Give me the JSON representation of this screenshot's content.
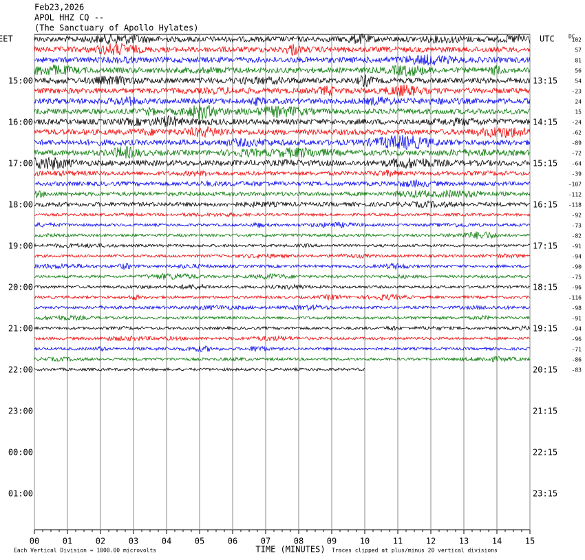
{
  "header": {
    "date": "Feb23,2026",
    "station": "APOL HHZ CQ --",
    "site": "(The Sanctuary of Apollo Hylates)"
  },
  "left_axis": {
    "title": "EET",
    "labels": [
      "15:00",
      "16:00",
      "17:00",
      "18:00",
      "19:00",
      "20:00",
      "21:00",
      "22:00",
      "23:00",
      "00:00",
      "01:00"
    ]
  },
  "right_axis": {
    "title": "UTC",
    "labels": [
      "13:15",
      "14:15",
      "15:15",
      "16:15",
      "17:15",
      "18:15",
      "19:15",
      "20:15",
      "21:15",
      "22:15",
      "23:15"
    ]
  },
  "dc": {
    "title": "DC",
    "offsets": [
      102,
      57,
      81,
      56,
      54,
      -23,
      24,
      15,
      -24,
      -62,
      -89,
      -72,
      -64,
      -39,
      -107,
      -112,
      -118,
      -92,
      -73,
      -82,
      -91,
      -94,
      -90,
      -75,
      -96,
      -116,
      -98,
      -91,
      -94,
      -96,
      -71,
      -86,
      -83
    ]
  },
  "x_axis": {
    "title": "TIME (MINUTES)",
    "ticks": [
      "00",
      "01",
      "02",
      "03",
      "04",
      "05",
      "06",
      "07",
      "08",
      "09",
      "10",
      "11",
      "12",
      "13",
      "14",
      "15"
    ]
  },
  "footer": {
    "left": "Each Vertical Division = 1000.00 microvolts",
    "right": "Traces clipped at plus/minus 20 vertical divisions"
  }
}
